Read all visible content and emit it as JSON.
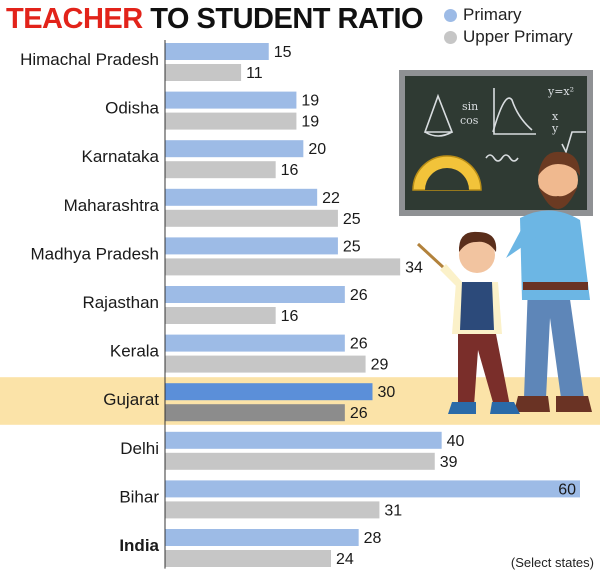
{
  "title": {
    "part1": "TEACHER",
    "part2": "TO STUDENT RATIO"
  },
  "legend": {
    "primary": "Primary",
    "upper_primary": "Upper Primary"
  },
  "note": "(Select states)",
  "colors": {
    "primary": "#9dbbe6",
    "upper_primary": "#c6c6c6",
    "primary_highlight": "#5b8fd9",
    "upper_primary_highlight": "#8c8c8c",
    "highlight_band": "#fbe3a8"
  },
  "chart_data": {
    "type": "bar",
    "orientation": "horizontal",
    "categories": [
      "Himachal Pradesh",
      "Odisha",
      "Karnataka",
      "Maharashtra",
      "Madhya Pradesh",
      "Rajasthan",
      "Kerala",
      "Gujarat",
      "Delhi",
      "Bihar",
      "India"
    ],
    "series": [
      {
        "name": "Primary",
        "values": [
          15,
          19,
          20,
          22,
          25,
          26,
          26,
          30,
          40,
          60,
          28
        ]
      },
      {
        "name": "Upper Primary",
        "values": [
          11,
          19,
          16,
          25,
          34,
          16,
          29,
          26,
          39,
          31,
          24
        ]
      }
    ],
    "highlighted_category": "Gujarat",
    "bold_category": "India",
    "xlim": [
      0,
      60
    ],
    "legend_position": "top-right",
    "grid": false
  }
}
